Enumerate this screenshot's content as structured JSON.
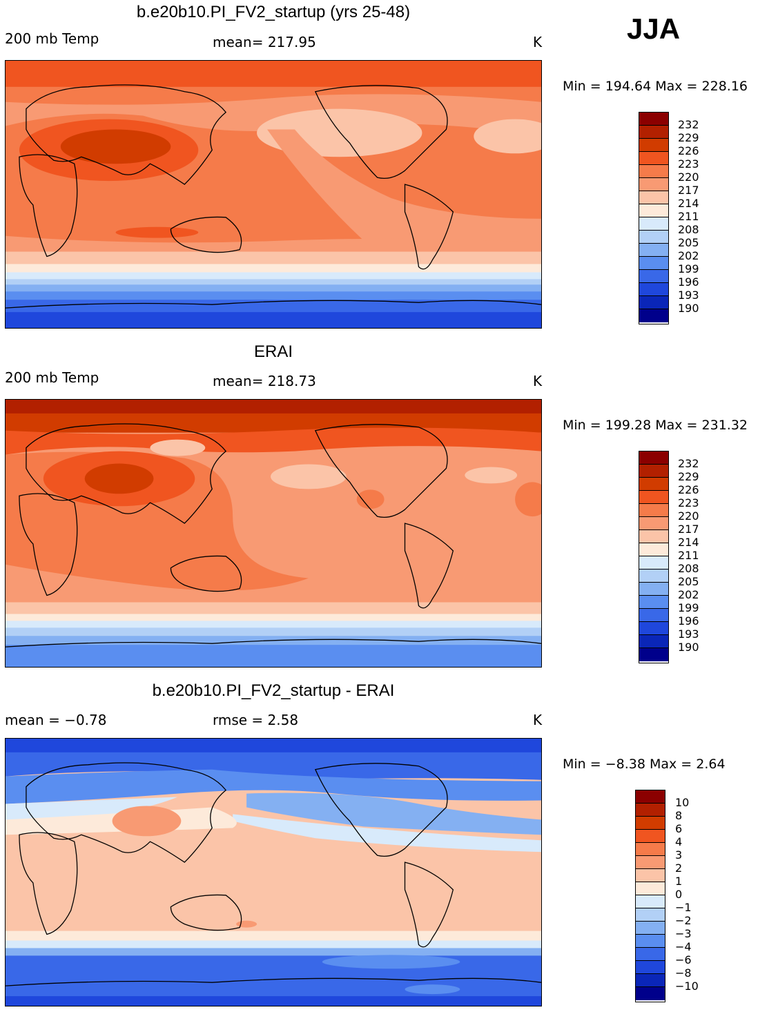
{
  "season": "JJA",
  "units": "K",
  "panels": [
    {
      "title": "b.e20b10.PI_FV2_startup (yrs 25-48)",
      "left_label": "200 mb Temp",
      "center_label": "mean= 217.95",
      "right_label": "K",
      "minmax": "Min = 194.64 Max = 228.16",
      "colorbar": {
        "labels": [
          "232",
          "229",
          "226",
          "223",
          "220",
          "217",
          "214",
          "211",
          "208",
          "205",
          "202",
          "199",
          "196",
          "193",
          "190"
        ],
        "colors": [
          "#8b0000",
          "#b22000",
          "#d13c00",
          "#f05520",
          "#f57b4a",
          "#f89a73",
          "#fbc4a8",
          "#fdeada",
          "#d8eafb",
          "#b2d0f6",
          "#84b0f2",
          "#5a8ef0",
          "#3968e8",
          "#1f47dc",
          "#0a26b8",
          "#00008b"
        ]
      },
      "map_description": "Model 200 mb temperature, warm Tibetan maximum, cold Antarctic"
    },
    {
      "title": "ERAI",
      "left_label": "200 mb Temp",
      "center_label": "mean= 218.73",
      "right_label": "K",
      "minmax": "Min = 199.28 Max = 231.32",
      "colorbar": {
        "labels": [
          "232",
          "229",
          "226",
          "223",
          "220",
          "217",
          "214",
          "211",
          "208",
          "205",
          "202",
          "199",
          "196",
          "193",
          "190"
        ],
        "colors": [
          "#8b0000",
          "#b22000",
          "#d13c00",
          "#f05520",
          "#f57b4a",
          "#f89a73",
          "#fbc4a8",
          "#fdeada",
          "#d8eafb",
          "#b2d0f6",
          "#84b0f2",
          "#5a8ef0",
          "#3968e8",
          "#1f47dc",
          "#0a26b8",
          "#00008b"
        ]
      },
      "map_description": "Reanalysis 200 mb temperature"
    },
    {
      "title": "b.e20b10.PI_FV2_startup - ERAI",
      "left_label": "mean =   −0.78",
      "center_label": "rmse =    2.58",
      "right_label": "K",
      "minmax": "Min =   −8.38 Max =    2.64",
      "colorbar": {
        "labels": [
          "10",
          "8",
          "6",
          "4",
          "3",
          "2",
          "1",
          "0",
          "−1",
          "−2",
          "−3",
          "−4",
          "−6",
          "−8",
          "−10"
        ],
        "colors": [
          "#8b0000",
          "#b22000",
          "#d13c00",
          "#f05520",
          "#f57b4a",
          "#f89a73",
          "#fbc4a8",
          "#fdeada",
          "#d8eafb",
          "#b2d0f6",
          "#84b0f2",
          "#5a8ef0",
          "#3968e8",
          "#1f47dc",
          "#0a26b8",
          "#00008b"
        ]
      },
      "map_description": "Difference model minus reanalysis"
    }
  ]
}
